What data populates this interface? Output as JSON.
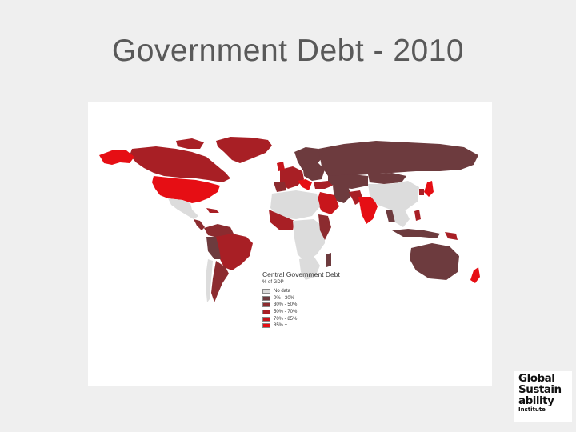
{
  "slide": {
    "title": "Government Debt - 2010"
  },
  "map": {
    "legend": {
      "title": "Central Government Debt",
      "subtitle": "% of GDP",
      "items": [
        {
          "label": "No data",
          "color": "#dcdcdc"
        },
        {
          "label": "0% - 30%",
          "color": "#6d3b3e"
        },
        {
          "label": "30% - 50%",
          "color": "#8c2b2f"
        },
        {
          "label": "50% - 70%",
          "color": "#a81f25"
        },
        {
          "label": "70% - 85%",
          "color": "#c8161c"
        },
        {
          "label": "85% +",
          "color": "#e60e14"
        }
      ]
    }
  },
  "logo": {
    "lines": [
      "Global",
      "Sustain",
      "ability",
      "Institute"
    ]
  }
}
